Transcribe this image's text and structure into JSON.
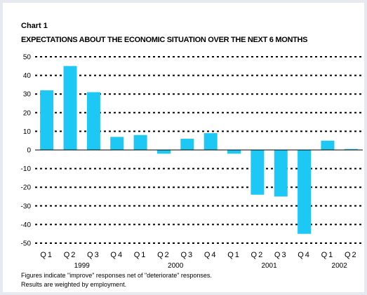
{
  "chart_data": {
    "type": "bar",
    "label": "Chart 1",
    "title": "EXPECTATIONS ABOUT THE ECONOMIC SITUATION OVER THE NEXT 6 MONTHS",
    "categories": [
      "Q1",
      "Q2",
      "Q3",
      "Q4",
      "Q1",
      "Q2",
      "Q3",
      "Q4",
      "Q1",
      "Q2",
      "Q3",
      "Q4",
      "Q1",
      "Q2"
    ],
    "years": [
      {
        "label": "1999",
        "quarters": 4
      },
      {
        "label": "2000",
        "quarters": 4
      },
      {
        "label": "2001",
        "quarters": 4
      },
      {
        "label": "2002",
        "quarters": 2
      }
    ],
    "values": [
      32,
      45,
      31,
      7,
      8,
      -2,
      6,
      9,
      -2,
      -24,
      -25,
      -45,
      5,
      0.5
    ],
    "ylim": [
      -50,
      50
    ],
    "yticks": [
      50,
      40,
      30,
      20,
      10,
      0,
      -10,
      -20,
      -30,
      -40,
      -50
    ],
    "grid": "dotted horizontal",
    "bar_color": "#1ec8f5",
    "notes": [
      "Figures indicate \"improve\" responses net of \"deteriorate\" responses.",
      "Results are weighted by employment."
    ]
  }
}
